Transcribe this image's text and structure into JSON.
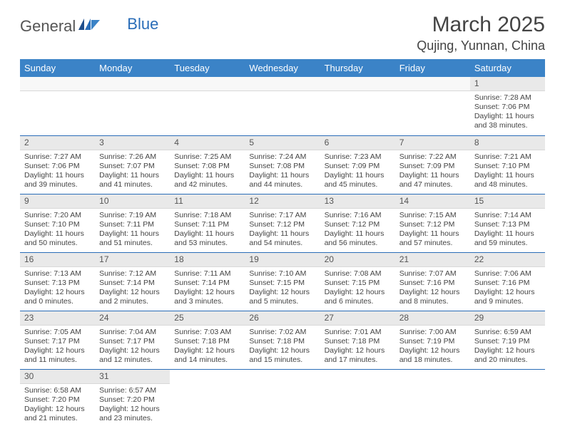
{
  "brand": {
    "general": "General",
    "blue": "Blue"
  },
  "title": "March 2025",
  "location": "Qujing, Yunnan, China",
  "colors": {
    "header_bg": "#3b83c7",
    "header_text": "#ffffff",
    "daynum_bg": "#e9e9e9",
    "border": "#2a6db8",
    "brand_blue": "#2a6db8"
  },
  "typography": {
    "title_fontsize": 30,
    "location_fontsize": 18,
    "dayheader_fontsize": 13,
    "cell_fontsize": 10.5
  },
  "day_headers": [
    "Sunday",
    "Monday",
    "Tuesday",
    "Wednesday",
    "Thursday",
    "Friday",
    "Saturday"
  ],
  "weeks": [
    [
      null,
      null,
      null,
      null,
      null,
      null,
      {
        "n": "1",
        "sunrise": "Sunrise: 7:28 AM",
        "sunset": "Sunset: 7:06 PM",
        "daylight": "Daylight: 11 hours and 38 minutes."
      }
    ],
    [
      {
        "n": "2",
        "sunrise": "Sunrise: 7:27 AM",
        "sunset": "Sunset: 7:06 PM",
        "daylight": "Daylight: 11 hours and 39 minutes."
      },
      {
        "n": "3",
        "sunrise": "Sunrise: 7:26 AM",
        "sunset": "Sunset: 7:07 PM",
        "daylight": "Daylight: 11 hours and 41 minutes."
      },
      {
        "n": "4",
        "sunrise": "Sunrise: 7:25 AM",
        "sunset": "Sunset: 7:08 PM",
        "daylight": "Daylight: 11 hours and 42 minutes."
      },
      {
        "n": "5",
        "sunrise": "Sunrise: 7:24 AM",
        "sunset": "Sunset: 7:08 PM",
        "daylight": "Daylight: 11 hours and 44 minutes."
      },
      {
        "n": "6",
        "sunrise": "Sunrise: 7:23 AM",
        "sunset": "Sunset: 7:09 PM",
        "daylight": "Daylight: 11 hours and 45 minutes."
      },
      {
        "n": "7",
        "sunrise": "Sunrise: 7:22 AM",
        "sunset": "Sunset: 7:09 PM",
        "daylight": "Daylight: 11 hours and 47 minutes."
      },
      {
        "n": "8",
        "sunrise": "Sunrise: 7:21 AM",
        "sunset": "Sunset: 7:10 PM",
        "daylight": "Daylight: 11 hours and 48 minutes."
      }
    ],
    [
      {
        "n": "9",
        "sunrise": "Sunrise: 7:20 AM",
        "sunset": "Sunset: 7:10 PM",
        "daylight": "Daylight: 11 hours and 50 minutes."
      },
      {
        "n": "10",
        "sunrise": "Sunrise: 7:19 AM",
        "sunset": "Sunset: 7:11 PM",
        "daylight": "Daylight: 11 hours and 51 minutes."
      },
      {
        "n": "11",
        "sunrise": "Sunrise: 7:18 AM",
        "sunset": "Sunset: 7:11 PM",
        "daylight": "Daylight: 11 hours and 53 minutes."
      },
      {
        "n": "12",
        "sunrise": "Sunrise: 7:17 AM",
        "sunset": "Sunset: 7:12 PM",
        "daylight": "Daylight: 11 hours and 54 minutes."
      },
      {
        "n": "13",
        "sunrise": "Sunrise: 7:16 AM",
        "sunset": "Sunset: 7:12 PM",
        "daylight": "Daylight: 11 hours and 56 minutes."
      },
      {
        "n": "14",
        "sunrise": "Sunrise: 7:15 AM",
        "sunset": "Sunset: 7:12 PM",
        "daylight": "Daylight: 11 hours and 57 minutes."
      },
      {
        "n": "15",
        "sunrise": "Sunrise: 7:14 AM",
        "sunset": "Sunset: 7:13 PM",
        "daylight": "Daylight: 11 hours and 59 minutes."
      }
    ],
    [
      {
        "n": "16",
        "sunrise": "Sunrise: 7:13 AM",
        "sunset": "Sunset: 7:13 PM",
        "daylight": "Daylight: 12 hours and 0 minutes."
      },
      {
        "n": "17",
        "sunrise": "Sunrise: 7:12 AM",
        "sunset": "Sunset: 7:14 PM",
        "daylight": "Daylight: 12 hours and 2 minutes."
      },
      {
        "n": "18",
        "sunrise": "Sunrise: 7:11 AM",
        "sunset": "Sunset: 7:14 PM",
        "daylight": "Daylight: 12 hours and 3 minutes."
      },
      {
        "n": "19",
        "sunrise": "Sunrise: 7:10 AM",
        "sunset": "Sunset: 7:15 PM",
        "daylight": "Daylight: 12 hours and 5 minutes."
      },
      {
        "n": "20",
        "sunrise": "Sunrise: 7:08 AM",
        "sunset": "Sunset: 7:15 PM",
        "daylight": "Daylight: 12 hours and 6 minutes."
      },
      {
        "n": "21",
        "sunrise": "Sunrise: 7:07 AM",
        "sunset": "Sunset: 7:16 PM",
        "daylight": "Daylight: 12 hours and 8 minutes."
      },
      {
        "n": "22",
        "sunrise": "Sunrise: 7:06 AM",
        "sunset": "Sunset: 7:16 PM",
        "daylight": "Daylight: 12 hours and 9 minutes."
      }
    ],
    [
      {
        "n": "23",
        "sunrise": "Sunrise: 7:05 AM",
        "sunset": "Sunset: 7:17 PM",
        "daylight": "Daylight: 12 hours and 11 minutes."
      },
      {
        "n": "24",
        "sunrise": "Sunrise: 7:04 AM",
        "sunset": "Sunset: 7:17 PM",
        "daylight": "Daylight: 12 hours and 12 minutes."
      },
      {
        "n": "25",
        "sunrise": "Sunrise: 7:03 AM",
        "sunset": "Sunset: 7:18 PM",
        "daylight": "Daylight: 12 hours and 14 minutes."
      },
      {
        "n": "26",
        "sunrise": "Sunrise: 7:02 AM",
        "sunset": "Sunset: 7:18 PM",
        "daylight": "Daylight: 12 hours and 15 minutes."
      },
      {
        "n": "27",
        "sunrise": "Sunrise: 7:01 AM",
        "sunset": "Sunset: 7:18 PM",
        "daylight": "Daylight: 12 hours and 17 minutes."
      },
      {
        "n": "28",
        "sunrise": "Sunrise: 7:00 AM",
        "sunset": "Sunset: 7:19 PM",
        "daylight": "Daylight: 12 hours and 18 minutes."
      },
      {
        "n": "29",
        "sunrise": "Sunrise: 6:59 AM",
        "sunset": "Sunset: 7:19 PM",
        "daylight": "Daylight: 12 hours and 20 minutes."
      }
    ],
    [
      {
        "n": "30",
        "sunrise": "Sunrise: 6:58 AM",
        "sunset": "Sunset: 7:20 PM",
        "daylight": "Daylight: 12 hours and 21 minutes."
      },
      {
        "n": "31",
        "sunrise": "Sunrise: 6:57 AM",
        "sunset": "Sunset: 7:20 PM",
        "daylight": "Daylight: 12 hours and 23 minutes."
      },
      null,
      null,
      null,
      null,
      null
    ]
  ]
}
